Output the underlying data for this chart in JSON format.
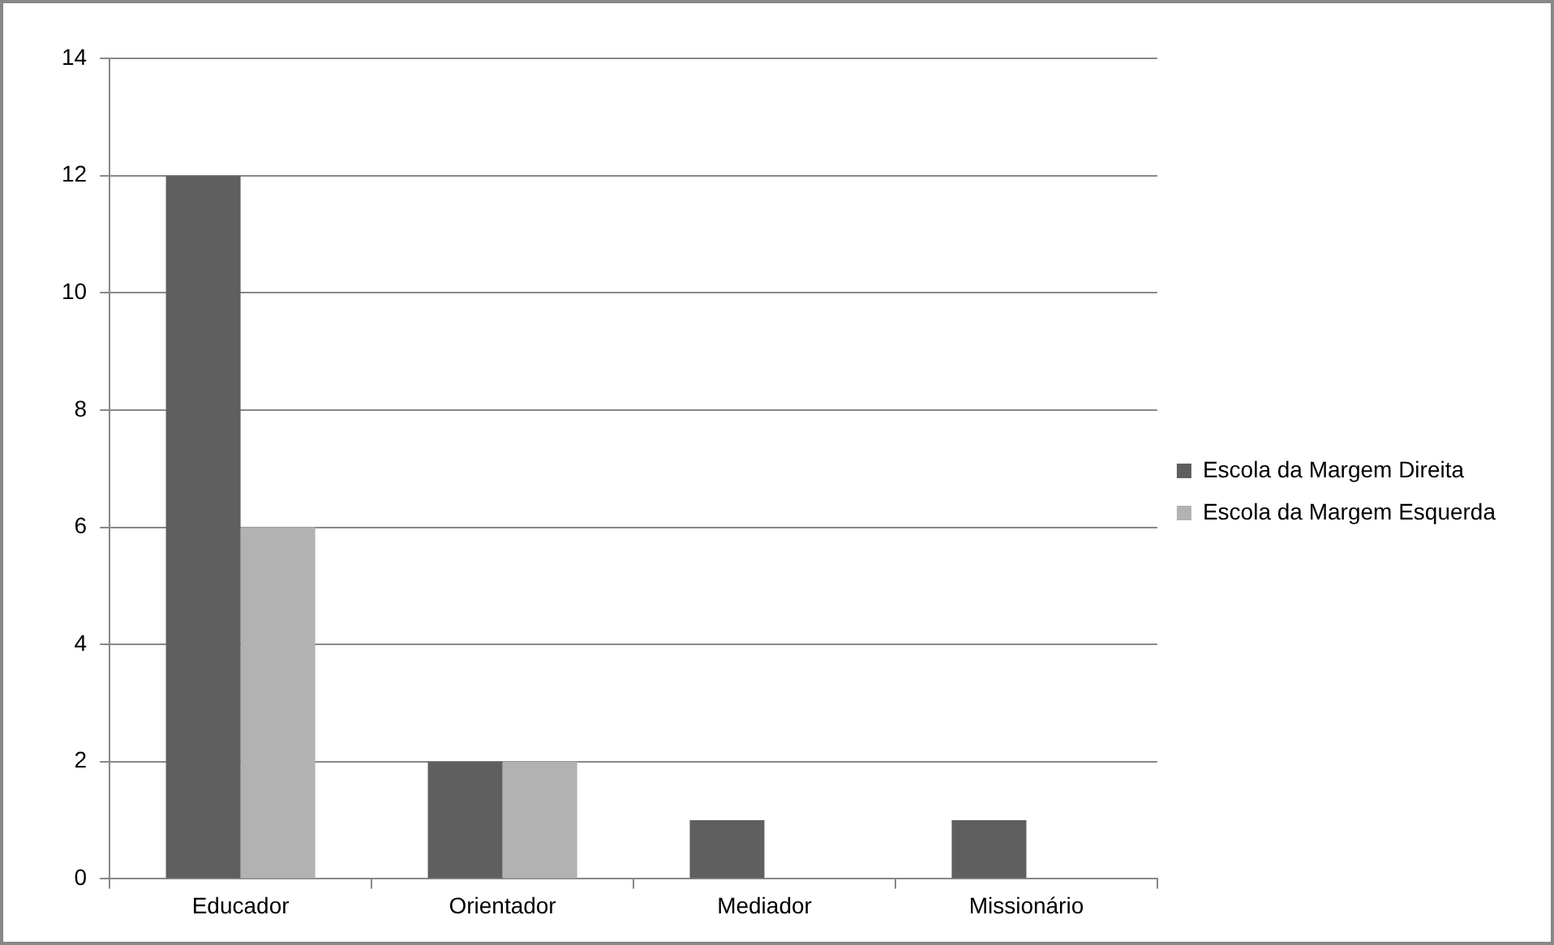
{
  "chart_data": {
    "type": "bar",
    "categories": [
      "Educador",
      "Orientador",
      "Mediador",
      "Missionário"
    ],
    "series": [
      {
        "name": "Escola da Margem Direita",
        "color": "#5f5f5f",
        "values": [
          12,
          2,
          1,
          1
        ]
      },
      {
        "name": "Escola da Margem Esquerda",
        "color": "#b2b2b2",
        "values": [
          6,
          2,
          0,
          0
        ]
      }
    ],
    "ylim": [
      0,
      14
    ],
    "yticks": [
      0,
      2,
      4,
      6,
      8,
      10,
      12,
      14
    ],
    "grid": "y",
    "legend": "right"
  }
}
